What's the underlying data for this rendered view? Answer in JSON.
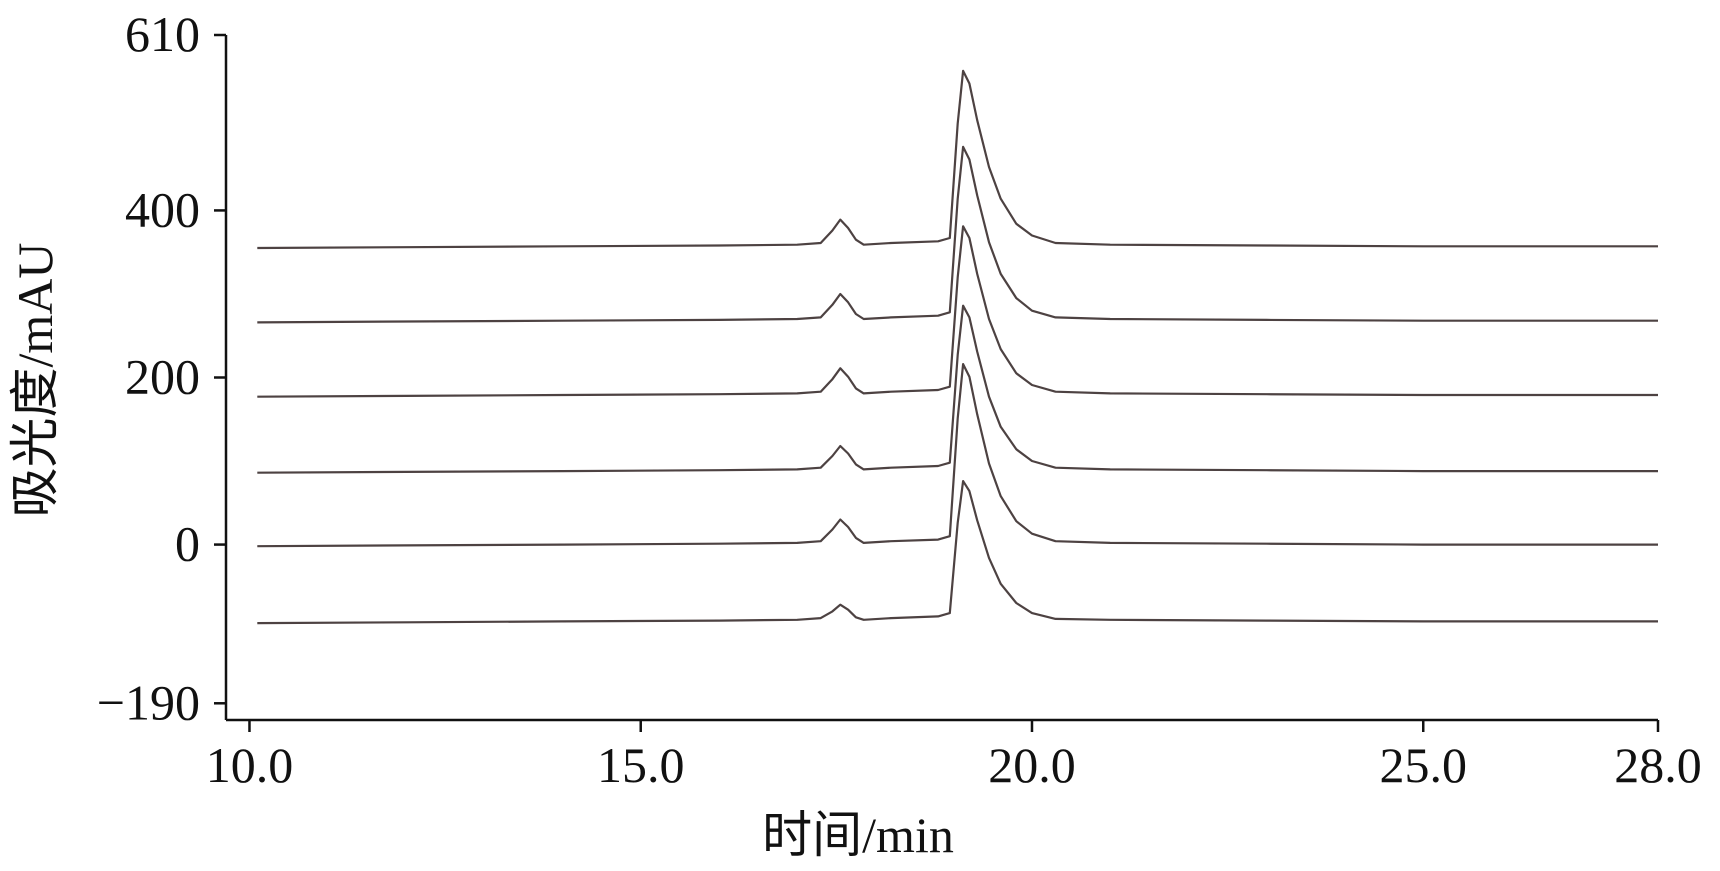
{
  "chart_data": {
    "type": "line",
    "x_label": "时间/min",
    "y_label": "吸光度/mAU",
    "xlim": [
      9.7,
      28
    ],
    "ylim": [
      -210,
      610
    ],
    "xticks": [
      {
        "value": 10,
        "label": "10.0"
      },
      {
        "value": 15,
        "label": "15.0"
      },
      {
        "value": 20,
        "label": "20.0"
      },
      {
        "value": 25,
        "label": "25.0"
      },
      {
        "value": 28,
        "label": "28.0"
      }
    ],
    "yticks": [
      610,
      400,
      200,
      0,
      {
        "value": -190,
        "label": "−190"
      }
    ],
    "x": [
      10.1,
      12,
      14,
      16,
      17.0,
      17.3,
      17.45,
      17.55,
      17.65,
      17.75,
      17.85,
      18.2,
      18.8,
      18.95,
      19.05,
      19.12,
      19.2,
      19.3,
      19.45,
      19.6,
      19.8,
      20.0,
      20.3,
      21,
      23,
      25,
      28
    ],
    "series": [
      {
        "color": "#4d4242",
        "values": [
          355,
          356,
          357,
          358,
          359,
          361,
          376,
          389,
          379,
          365,
          359,
          361,
          363,
          367,
          504,
          567,
          552,
          508,
          452,
          414,
          384,
          370,
          361,
          359,
          358,
          357,
          357
        ]
      },
      {
        "color": "#4d4242",
        "values": [
          266,
          267,
          268,
          269,
          270,
          272,
          287,
          300,
          290,
          276,
          270,
          272,
          274,
          278,
          414,
          476,
          461,
          418,
          362,
          324,
          295,
          280,
          272,
          270,
          269,
          268,
          268
        ]
      },
      {
        "color": "#4d4242",
        "values": [
          177,
          178,
          179,
          180,
          181,
          183,
          198,
          211,
          201,
          187,
          181,
          183,
          185,
          189,
          320,
          381,
          367,
          324,
          270,
          234,
          205,
          191,
          183,
          181,
          180,
          179,
          179
        ]
      },
      {
        "color": "#4d4242",
        "values": [
          86,
          87,
          88,
          89,
          90,
          92,
          106,
          118,
          109,
          96,
          90,
          92,
          94,
          98,
          227,
          286,
          272,
          231,
          177,
          141,
          114,
          100,
          92,
          90,
          89,
          88,
          88
        ]
      },
      {
        "color": "#4d4242",
        "values": [
          -2,
          -1,
          0,
          1,
          2,
          4,
          18,
          30,
          21,
          8,
          2,
          4,
          6,
          10,
          151,
          216,
          201,
          156,
          97,
          58,
          28,
          13,
          4,
          2,
          1,
          0,
          0
        ]
      },
      {
        "color": "#4d4242",
        "values": [
          -94,
          -93,
          -92,
          -91,
          -90,
          -88,
          -80,
          -72,
          -78,
          -87,
          -90,
          -88,
          -86,
          -82,
          26,
          76,
          64,
          29,
          -16,
          -47,
          -70,
          -82,
          -89,
          -90,
          -91,
          -92,
          -92
        ]
      }
    ]
  }
}
